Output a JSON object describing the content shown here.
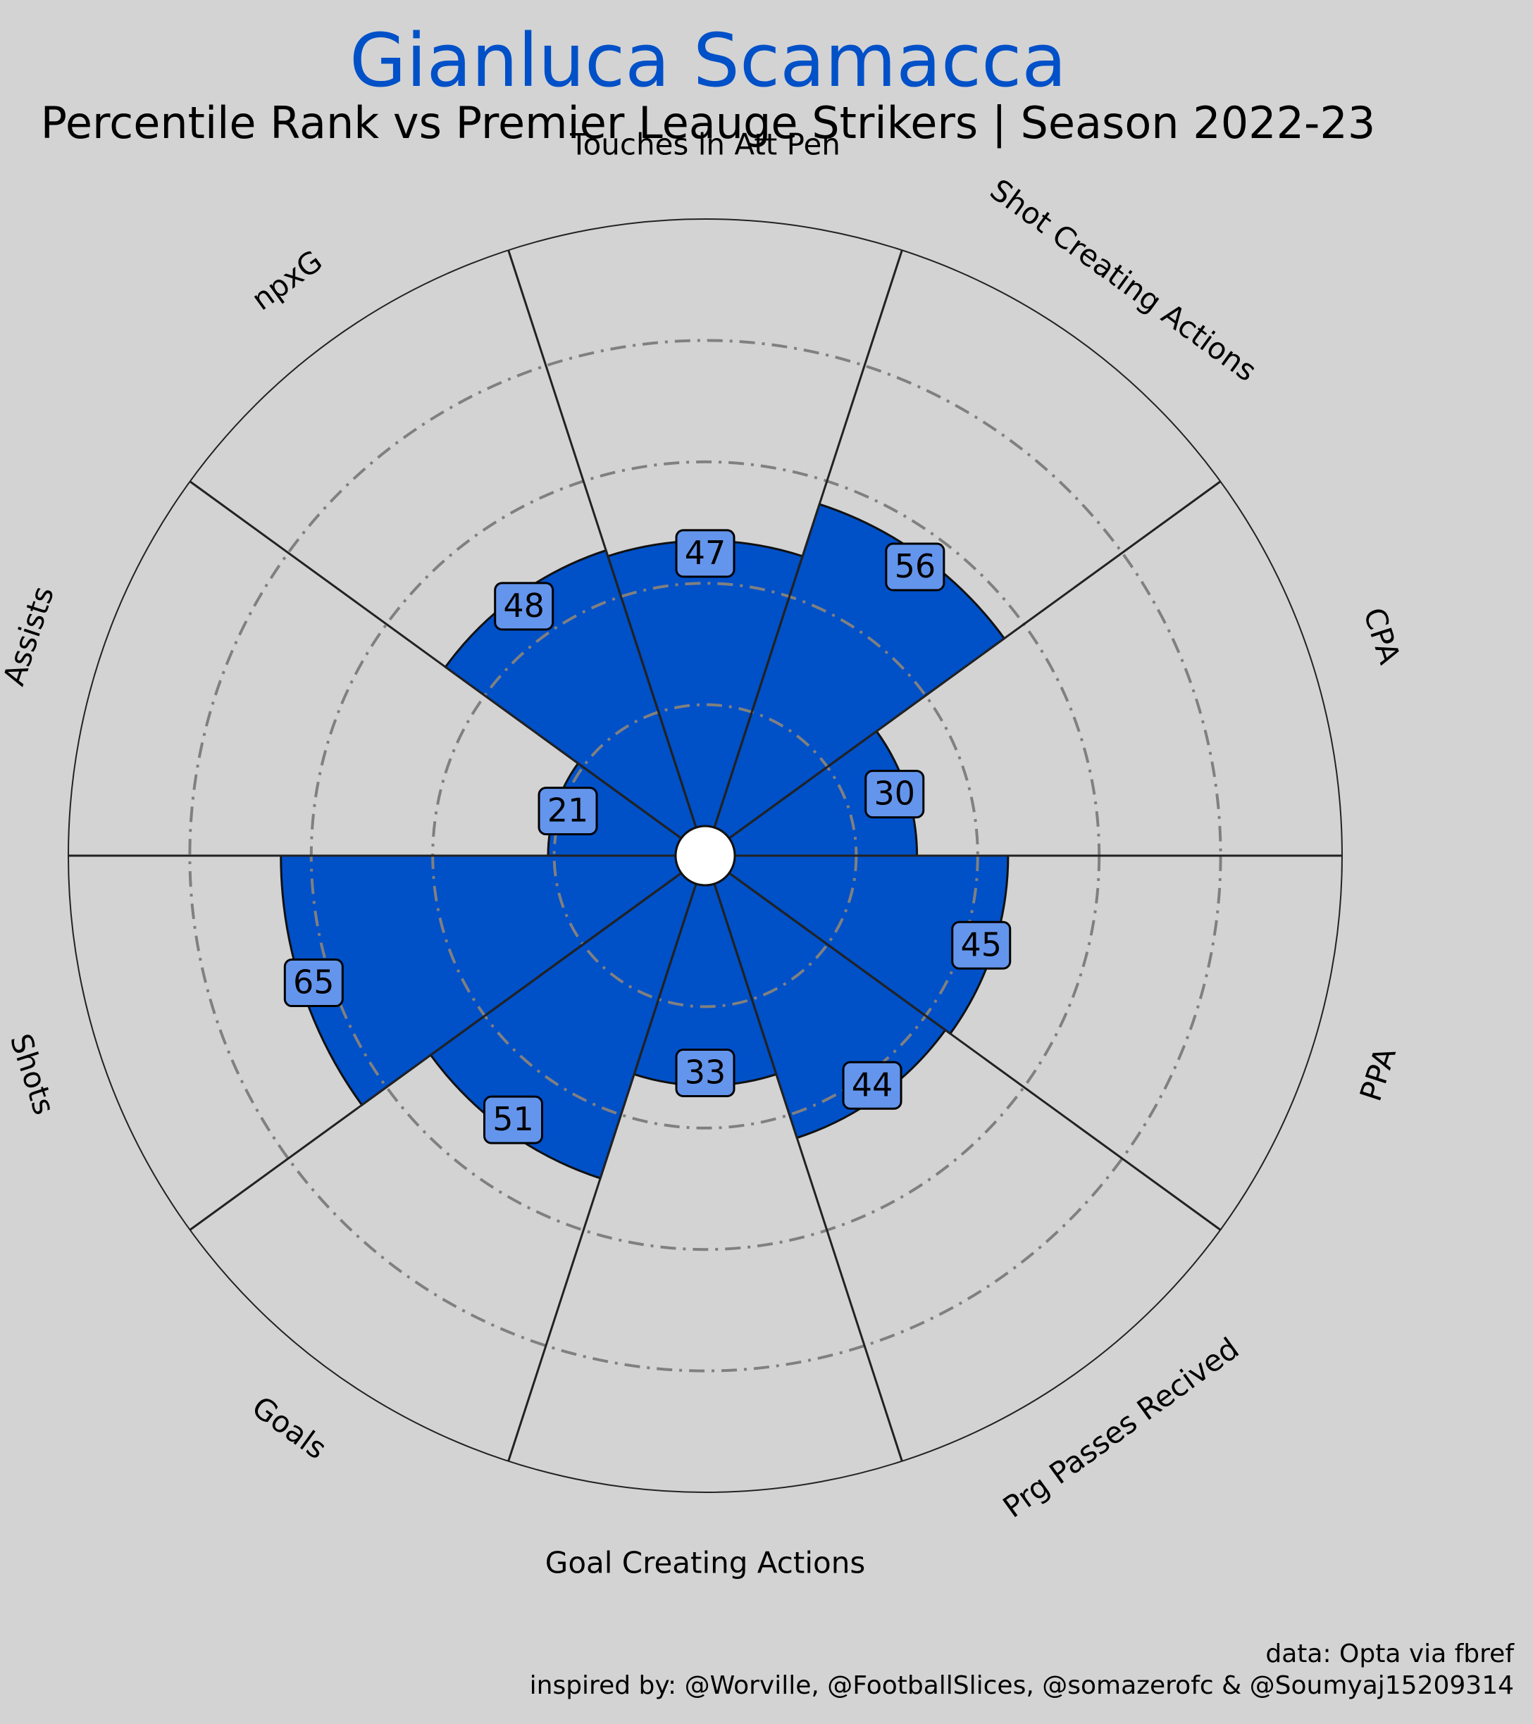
{
  "title": "Gianluca Scamacca",
  "subtitle": "Percentile Rank vs Premier Leauge Strikers | Season 2022-23",
  "footer": {
    "data_source": "data: Opta via fbref",
    "inspired_by": "inspired by: @Worville, @FootballSlices, @somazerofc & @Soumyaj15209314"
  },
  "colors": {
    "background": "#d3d3d3",
    "slice_fill": "#0050c8",
    "value_box": "#6495ed",
    "title": "#0050c8"
  },
  "chart_data": {
    "type": "pie",
    "variant": "polar-bar (pizza)",
    "categories": [
      "Touches in Att Pen",
      "Shot Creating Actions",
      "CPA",
      "PPA",
      "Prg Passes Recived",
      "Goal Creating Actions",
      "Goals",
      "Shots",
      "Assists",
      "npxG"
    ],
    "values": [
      47,
      56,
      30,
      45,
      44,
      33,
      51,
      65,
      21,
      48
    ],
    "rlim": [
      0,
      100
    ],
    "gridlines": [
      20,
      40,
      60,
      80
    ],
    "grid": true
  }
}
